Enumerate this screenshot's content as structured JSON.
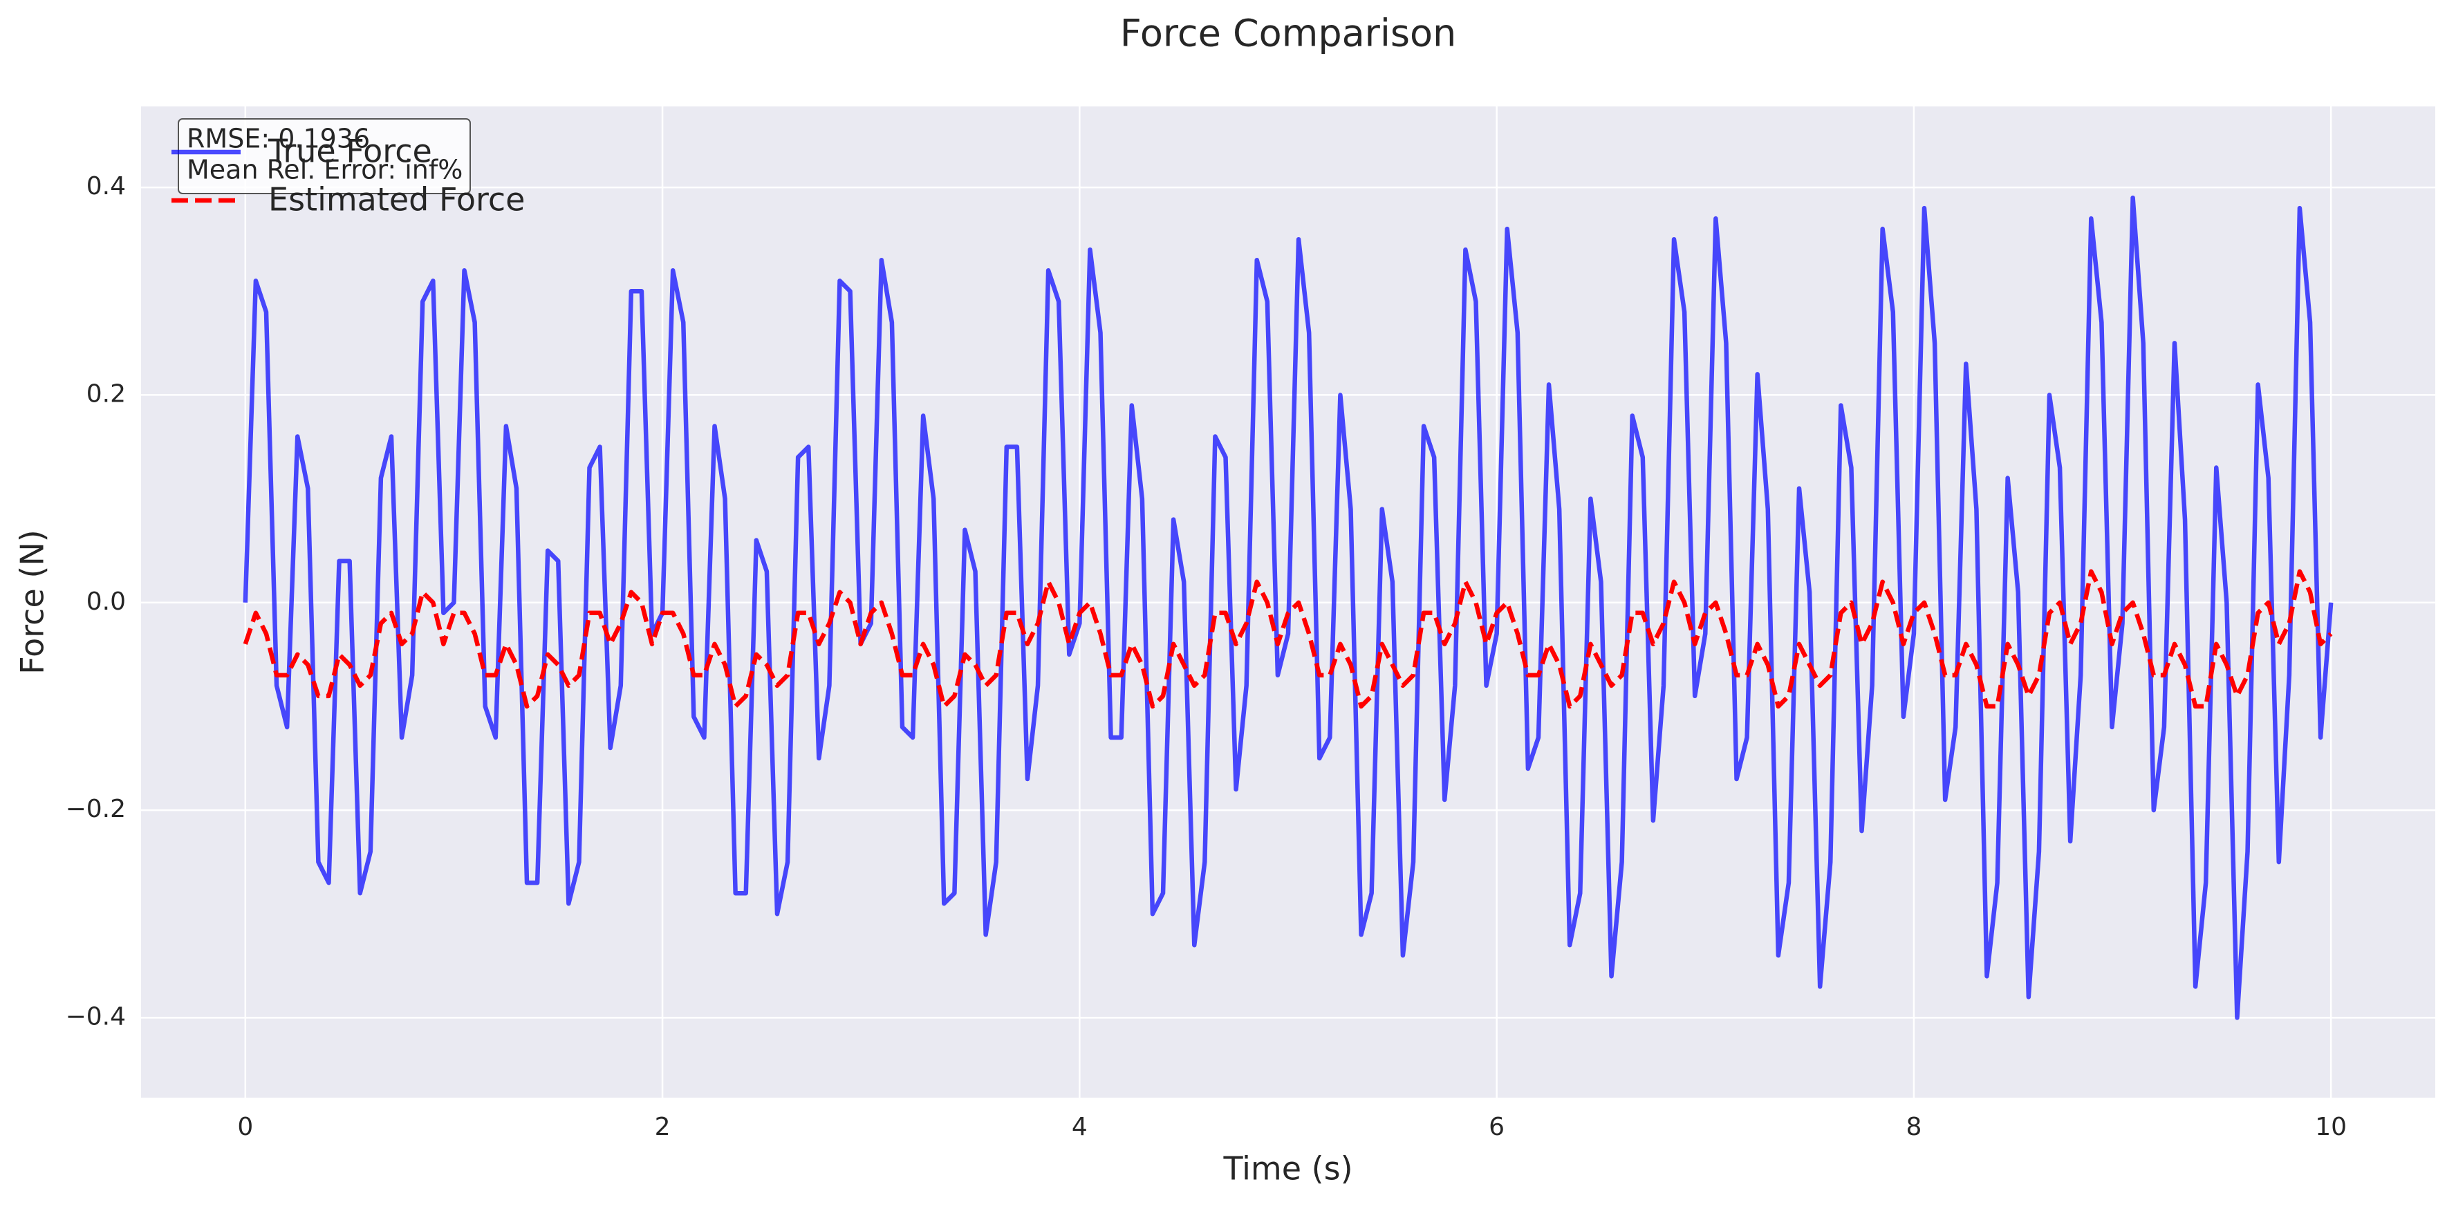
{
  "chart_data": {
    "type": "line",
    "title": "Force Comparison",
    "x_label": "Time (s)",
    "y_label": "Force (N)",
    "x": [
      0,
      0.05,
      0.1,
      0.15,
      0.2,
      0.25,
      0.3,
      0.35,
      0.4,
      0.45,
      0.5,
      0.55,
      0.6,
      0.65,
      0.7,
      0.75,
      0.8,
      0.85,
      0.9,
      0.95,
      1,
      1.05,
      1.1,
      1.15,
      1.2,
      1.25,
      1.3,
      1.35,
      1.4,
      1.45,
      1.5,
      1.55,
      1.6,
      1.65,
      1.7,
      1.75,
      1.8,
      1.85,
      1.9,
      1.95,
      2,
      2.05,
      2.1,
      2.15,
      2.2,
      2.25,
      2.3,
      2.35,
      2.4,
      2.45,
      2.5,
      2.55,
      2.6,
      2.65,
      2.7,
      2.75,
      2.8,
      2.85,
      2.9,
      2.95,
      3,
      3.05,
      3.1,
      3.15,
      3.2,
      3.25,
      3.3,
      3.35,
      3.4,
      3.45,
      3.5,
      3.55,
      3.6,
      3.65,
      3.7,
      3.75,
      3.8,
      3.85,
      3.9,
      3.95,
      4,
      4.05,
      4.1,
      4.15,
      4.2,
      4.25,
      4.3,
      4.35,
      4.4,
      4.45,
      4.5,
      4.55,
      4.6,
      4.65,
      4.7,
      4.75,
      4.8,
      4.85,
      4.9,
      4.95,
      5,
      5.05,
      5.1,
      5.15,
      5.2,
      5.25,
      5.3,
      5.35,
      5.4,
      5.45,
      5.5,
      5.55,
      5.6,
      5.65,
      5.7,
      5.75,
      5.8,
      5.85,
      5.9,
      5.95,
      6,
      6.05,
      6.1,
      6.15,
      6.2,
      6.25,
      6.3,
      6.35,
      6.4,
      6.45,
      6.5,
      6.55,
      6.6,
      6.65,
      6.7,
      6.75,
      6.8,
      6.85,
      6.9,
      6.95,
      7,
      7.05,
      7.1,
      7.15,
      7.2,
      7.25,
      7.3,
      7.35,
      7.4,
      7.45,
      7.5,
      7.55,
      7.6,
      7.65,
      7.7,
      7.75,
      7.8,
      7.85,
      7.9,
      7.95,
      8,
      8.05,
      8.1,
      8.15,
      8.2,
      8.25,
      8.3,
      8.35,
      8.4,
      8.45,
      8.5,
      8.55,
      8.6,
      8.65,
      8.7,
      8.75,
      8.8,
      8.85,
      8.9,
      8.95,
      9,
      9.05,
      9.1,
      9.15,
      9.2,
      9.25,
      9.3,
      9.35,
      9.4,
      9.45,
      9.5,
      9.55,
      9.6,
      9.65,
      9.7,
      9.75,
      9.8,
      9.85,
      9.9,
      9.95,
      10
    ],
    "series": [
      {
        "name": "True Force",
        "color": "#0000ff",
        "style": "solid",
        "values": [
          0,
          0.31,
          0.28,
          -0.08,
          -0.12,
          0.16,
          0.11,
          -0.25,
          -0.27,
          0.04,
          0.04,
          -0.28,
          -0.24,
          0.12,
          0.16,
          -0.13,
          -0.07,
          0.29,
          0.31,
          -0.01,
          0,
          0.32,
          0.27,
          -0.1,
          -0.13,
          0.17,
          0.11,
          -0.27,
          -0.27,
          0.05,
          0.04,
          -0.29,
          -0.25,
          0.13,
          0.15,
          -0.14,
          -0.08,
          0.3,
          0.3,
          -0.03,
          -0.01,
          0.32,
          0.27,
          -0.11,
          -0.13,
          0.17,
          0.1,
          -0.28,
          -0.28,
          0.06,
          0.03,
          -0.3,
          -0.25,
          0.14,
          0.15,
          -0.15,
          -0.08,
          0.31,
          0.3,
          -0.04,
          -0.02,
          0.33,
          0.27,
          -0.12,
          -0.13,
          0.18,
          0.1,
          -0.29,
          -0.28,
          0.07,
          0.03,
          -0.32,
          -0.25,
          0.15,
          0.15,
          -0.17,
          -0.08,
          0.32,
          0.29,
          -0.05,
          -0.02,
          0.34,
          0.26,
          -0.13,
          -0.13,
          0.19,
          0.1,
          -0.3,
          -0.28,
          0.08,
          0.02,
          -0.33,
          -0.25,
          0.16,
          0.14,
          -0.18,
          -0.08,
          0.33,
          0.29,
          -0.07,
          -0.03,
          0.35,
          0.26,
          -0.15,
          -0.13,
          0.2,
          0.09,
          -0.32,
          -0.28,
          0.09,
          0.02,
          -0.34,
          -0.25,
          0.17,
          0.14,
          -0.19,
          -0.08,
          0.34,
          0.29,
          -0.08,
          -0.03,
          0.36,
          0.26,
          -0.16,
          -0.13,
          0.21,
          0.09,
          -0.33,
          -0.28,
          0.1,
          0.02,
          -0.36,
          -0.25,
          0.18,
          0.14,
          -0.21,
          -0.08,
          0.35,
          0.28,
          -0.09,
          -0.03,
          0.37,
          0.25,
          -0.17,
          -0.13,
          0.22,
          0.09,
          -0.34,
          -0.27,
          0.11,
          0.01,
          -0.37,
          -0.25,
          0.19,
          0.13,
          -0.22,
          -0.08,
          0.36,
          0.28,
          -0.11,
          -0.03,
          0.38,
          0.25,
          -0.19,
          -0.12,
          0.23,
          0.09,
          -0.36,
          -0.27,
          0.12,
          0.01,
          -0.38,
          -0.24,
          0.2,
          0.13,
          -0.23,
          -0.07,
          0.37,
          0.27,
          -0.12,
          -0.02,
          0.39,
          0.25,
          -0.2,
          -0.12,
          0.25,
          0.08,
          -0.37,
          -0.27,
          0.13,
          0,
          -0.4,
          -0.24,
          0.21,
          0.12,
          -0.25,
          -0.07,
          0.38,
          0.27,
          -0.13,
          0
        ]
      },
      {
        "name": "Estimated Force",
        "color": "#ff0000",
        "style": "dashed",
        "values": [
          -0.04,
          -0.01,
          -0.03,
          -0.07,
          -0.07,
          -0.05,
          -0.06,
          -0.09,
          -0.09,
          -0.05,
          -0.06,
          -0.08,
          -0.07,
          -0.02,
          -0.01,
          -0.04,
          -0.03,
          0.01,
          0,
          -0.04,
          -0.01,
          -0.01,
          -0.03,
          -0.07,
          -0.07,
          -0.04,
          -0.06,
          -0.1,
          -0.09,
          -0.05,
          -0.06,
          -0.08,
          -0.07,
          -0.01,
          -0.01,
          -0.04,
          -0.02,
          0.01,
          0,
          -0.04,
          -0.01,
          -0.01,
          -0.03,
          -0.07,
          -0.07,
          -0.04,
          -0.06,
          -0.1,
          -0.09,
          -0.05,
          -0.06,
          -0.08,
          -0.07,
          -0.01,
          -0.01,
          -0.04,
          -0.02,
          0.01,
          0,
          -0.04,
          -0.01,
          0,
          -0.03,
          -0.07,
          -0.07,
          -0.04,
          -0.06,
          -0.1,
          -0.09,
          -0.05,
          -0.06,
          -0.08,
          -0.07,
          -0.01,
          -0.01,
          -0.04,
          -0.02,
          0.02,
          0,
          -0.04,
          -0.01,
          0,
          -0.03,
          -0.07,
          -0.07,
          -0.04,
          -0.06,
          -0.1,
          -0.09,
          -0.04,
          -0.06,
          -0.08,
          -0.07,
          -0.01,
          -0.01,
          -0.04,
          -0.02,
          0.02,
          0,
          -0.04,
          -0.01,
          0,
          -0.03,
          -0.07,
          -0.07,
          -0.04,
          -0.06,
          -0.1,
          -0.09,
          -0.04,
          -0.06,
          -0.08,
          -0.07,
          -0.01,
          -0.01,
          -0.04,
          -0.02,
          0.02,
          0,
          -0.04,
          -0.01,
          0,
          -0.03,
          -0.07,
          -0.07,
          -0.04,
          -0.06,
          -0.1,
          -0.09,
          -0.04,
          -0.06,
          -0.08,
          -0.07,
          -0.01,
          -0.01,
          -0.04,
          -0.02,
          0.02,
          0,
          -0.04,
          -0.01,
          0,
          -0.03,
          -0.07,
          -0.07,
          -0.04,
          -0.06,
          -0.1,
          -0.09,
          -0.04,
          -0.06,
          -0.08,
          -0.07,
          -0.01,
          0,
          -0.04,
          -0.02,
          0.02,
          0,
          -0.04,
          -0.01,
          0,
          -0.03,
          -0.07,
          -0.07,
          -0.04,
          -0.06,
          -0.1,
          -0.1,
          -0.04,
          -0.06,
          -0.09,
          -0.07,
          -0.01,
          0,
          -0.04,
          -0.02,
          0.03,
          0.01,
          -0.04,
          -0.01,
          0,
          -0.03,
          -0.07,
          -0.07,
          -0.04,
          -0.06,
          -0.1,
          -0.1,
          -0.04,
          -0.06,
          -0.09,
          -0.07,
          -0.01,
          0,
          -0.04,
          -0.02,
          0.03,
          0.01,
          -0.04,
          -0.03
        ]
      }
    ],
    "xlim": [
      -0.5,
      10.5
    ],
    "ylim": [
      -0.477,
      0.478
    ],
    "xticks": [
      0,
      2,
      4,
      6,
      8,
      10
    ],
    "yticks": [
      {
        "value": -0.4,
        "label": "−0.4"
      },
      {
        "value": -0.2,
        "label": "−0.2"
      },
      {
        "value": 0,
        "label": "0.0"
      },
      0.2,
      0.4
    ],
    "grid": true,
    "legend": "upper left",
    "annotation": [
      "RMSE: 0.1936",
      "Mean Rel. Error: inf%"
    ]
  }
}
